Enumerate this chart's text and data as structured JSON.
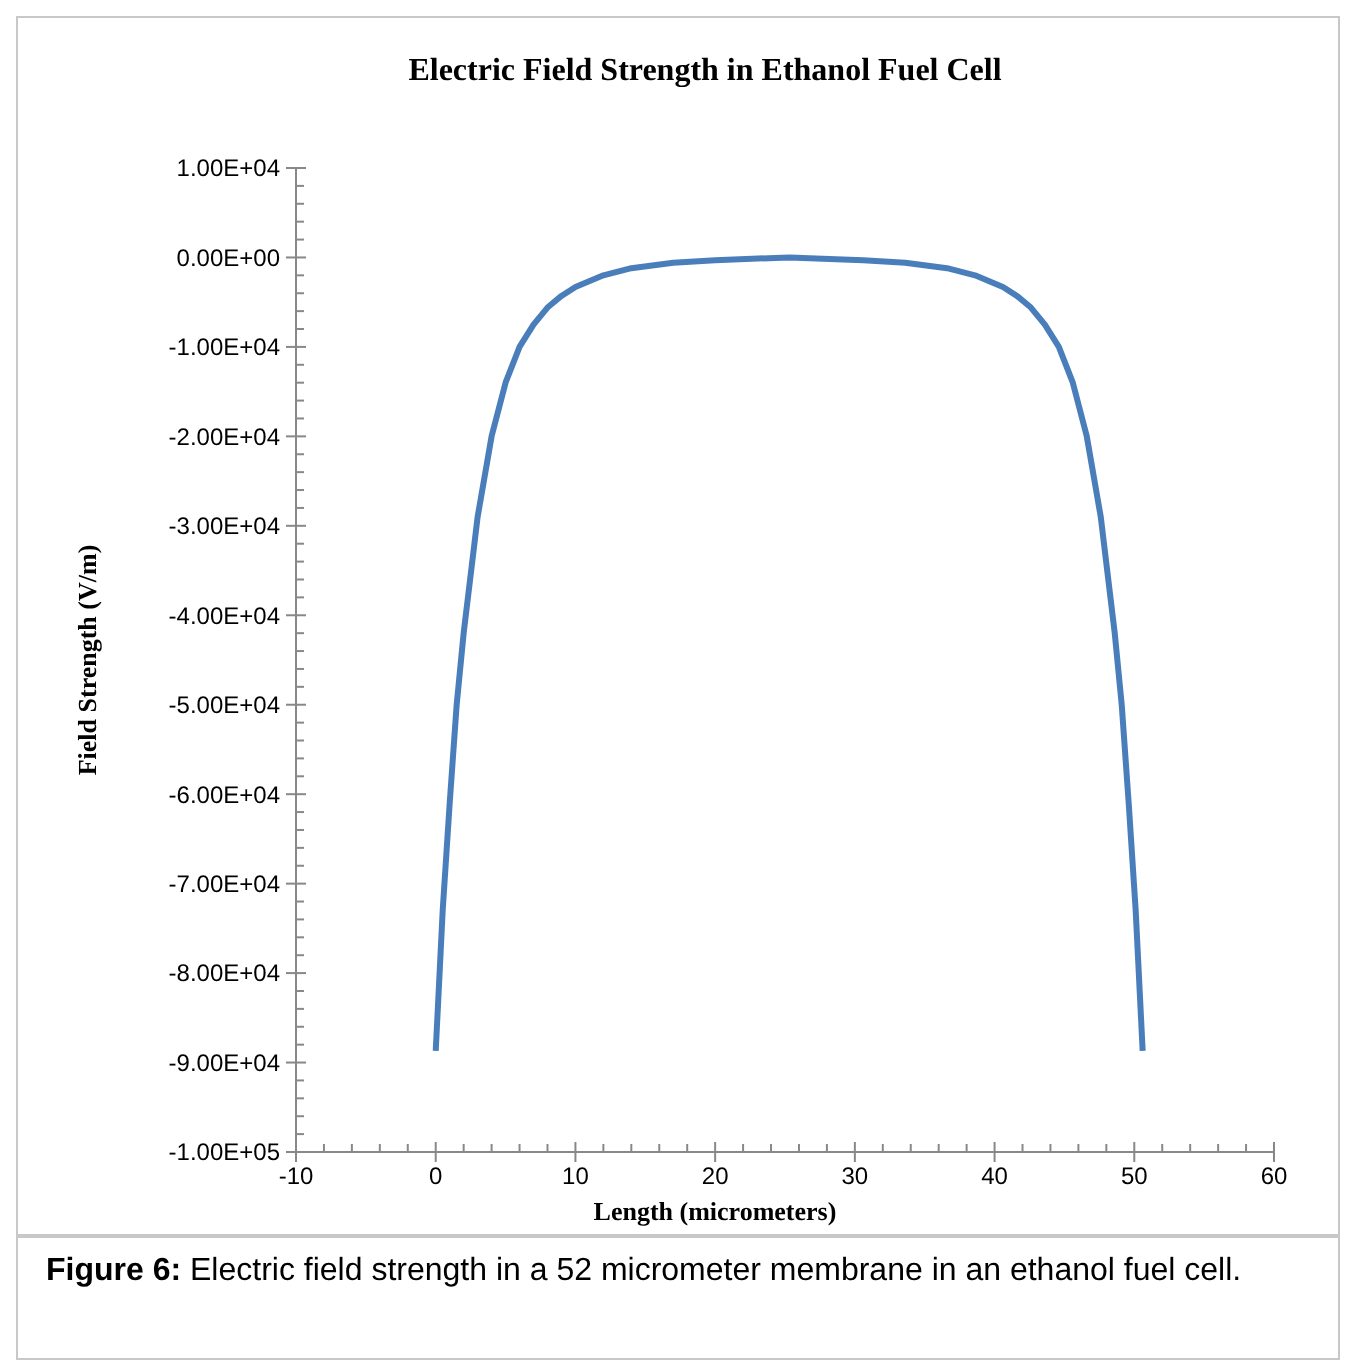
{
  "chart_data": {
    "type": "line",
    "title": "Electric Field Strength in Ethanol Fuel Cell",
    "xlabel": "Length (micrometers)",
    "ylabel": "Field Strength (V/m)",
    "annotations": [
      "Figure 6: Electric field strength in a 52 micrometer membrane in an ethanol fuel cell."
    ],
    "xlim": [
      -10,
      60
    ],
    "xticks": [
      -10,
      0,
      10,
      20,
      30,
      40,
      50,
      60
    ],
    "ylim": [
      -100000,
      10000
    ],
    "yticks": [
      {
        "value": -100000,
        "label": "-1.00E+05"
      },
      {
        "value": -90000,
        "label": "-9.00E+04"
      },
      {
        "value": -80000,
        "label": "-8.00E+04"
      },
      {
        "value": -70000,
        "label": "-7.00E+04"
      },
      {
        "value": -60000,
        "label": "-6.00E+04"
      },
      {
        "value": -50000,
        "label": "-5.00E+04"
      },
      {
        "value": -40000,
        "label": "-4.00E+04"
      },
      {
        "value": -30000,
        "label": "-3.00E+04"
      },
      {
        "value": -20000,
        "label": "-2.00E+04"
      },
      {
        "value": -10000,
        "label": "-1.00E+04"
      },
      {
        "value": 0,
        "label": "0.00E+00"
      },
      {
        "value": 10000,
        "label": "1.00E+04"
      }
    ],
    "grid": false,
    "marker": "none",
    "line_style": "solid",
    "series": [
      {
        "color": "#4a7ebb",
        "x": [
          0,
          0.5,
          1,
          1.5,
          2,
          3,
          4,
          5,
          6,
          7,
          8,
          9,
          10,
          12,
          14,
          17,
          20,
          25.3,
          30.6,
          33.6,
          36.6,
          38.6,
          40.6,
          41.6,
          42.6,
          43.6,
          44.6,
          45.6,
          46.6,
          47.6,
          48.6,
          49.1,
          49.6,
          50.1,
          50.6
        ],
        "values": [
          -88700,
          -73000,
          -61000,
          -50000,
          -42000,
          -29000,
          -20000,
          -14000,
          -10000,
          -7500,
          -5600,
          -4300,
          -3300,
          -2000,
          -1200,
          -600,
          -300,
          0,
          -300,
          -600,
          -1200,
          -2000,
          -3300,
          -4300,
          -5600,
          -7500,
          -10000,
          -14000,
          -20000,
          -29000,
          -42000,
          -50000,
          -61000,
          -73000,
          -88700
        ]
      }
    ]
  }
}
